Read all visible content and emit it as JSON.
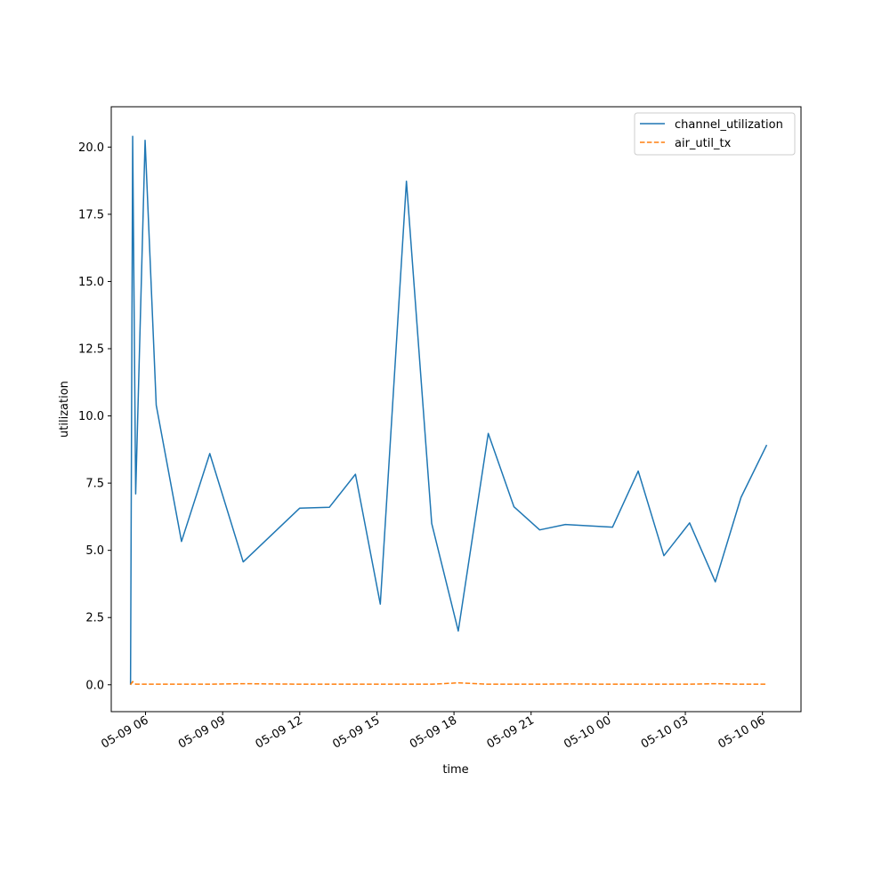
{
  "chart_data": {
    "type": "line",
    "title": "",
    "xlabel": "time",
    "ylabel": "utilization",
    "x_is_datetime": true,
    "xlim": [
      "2024-05-09 04:40",
      "2024-05-10 07:30"
    ],
    "ylim": [
      -1.0,
      21.5
    ],
    "yticks": [
      0.0,
      2.5,
      5.0,
      7.5,
      10.0,
      12.5,
      15.0,
      17.5,
      20.0
    ],
    "ytick_labels": [
      "0.0",
      "2.5",
      "5.0",
      "7.5",
      "10.0",
      "12.5",
      "15.0",
      "17.5",
      "20.0"
    ],
    "xticks": [
      "2024-05-09 06:00",
      "2024-05-09 09:00",
      "2024-05-09 12:00",
      "2024-05-09 15:00",
      "2024-05-09 18:00",
      "2024-05-09 21:00",
      "2024-05-10 00:00",
      "2024-05-10 03:00",
      "2024-05-10 06:00"
    ],
    "xtick_labels": [
      "05-09 06",
      "05-09 09",
      "05-09 12",
      "05-09 15",
      "05-09 18",
      "05-09 21",
      "05-10 00",
      "05-10 03",
      "05-10 06"
    ],
    "grid": false,
    "legend_position": "top-right",
    "series": [
      {
        "name": "channel_utilization",
        "color": "#1f77b4",
        "style": "solid",
        "x": [
          "2024-05-09 05:25",
          "2024-05-09 05:30",
          "2024-05-09 05:37",
          "2024-05-09 05:59",
          "2024-05-09 06:25",
          "2024-05-09 07:24",
          "2024-05-09 08:30",
          "2024-05-09 09:48",
          "2024-05-09 12:00",
          "2024-05-09 13:09",
          "2024-05-09 14:10",
          "2024-05-09 15:08",
          "2024-05-09 16:09",
          "2024-05-09 17:08",
          "2024-05-09 18:10",
          "2024-05-09 19:20",
          "2024-05-09 20:20",
          "2024-05-09 21:20",
          "2024-05-09 22:20",
          "2024-05-10 00:10",
          "2024-05-10 01:10",
          "2024-05-10 02:10",
          "2024-05-10 03:10",
          "2024-05-10 04:10",
          "2024-05-10 05:10",
          "2024-05-10 06:10"
        ],
        "values": [
          0.0,
          20.4,
          7.1,
          20.25,
          10.4,
          5.33,
          8.6,
          4.57,
          6.57,
          6.6,
          7.83,
          3.0,
          18.73,
          6.0,
          2.0,
          9.35,
          6.62,
          5.76,
          5.96,
          5.86,
          7.95,
          4.8,
          6.02,
          3.83,
          6.97,
          8.92
        ]
      },
      {
        "name": "air_util_tx",
        "color": "#ff7f0e",
        "style": "dashed",
        "x": [
          "2024-05-09 05:25",
          "2024-05-09 05:30",
          "2024-05-09 05:37",
          "2024-05-09 05:59",
          "2024-05-09 06:25",
          "2024-05-09 07:24",
          "2024-05-09 08:30",
          "2024-05-09 09:48",
          "2024-05-09 12:00",
          "2024-05-09 13:09",
          "2024-05-09 14:10",
          "2024-05-09 15:08",
          "2024-05-09 16:09",
          "2024-05-09 17:08",
          "2024-05-09 18:10",
          "2024-05-09 19:20",
          "2024-05-09 20:20",
          "2024-05-09 21:20",
          "2024-05-09 22:20",
          "2024-05-10 00:10",
          "2024-05-10 01:10",
          "2024-05-10 02:10",
          "2024-05-10 03:10",
          "2024-05-10 04:10",
          "2024-05-10 05:10",
          "2024-05-10 06:10"
        ],
        "values": [
          0.0,
          0.12,
          0.02,
          0.02,
          0.02,
          0.02,
          0.02,
          0.04,
          0.02,
          0.02,
          0.02,
          0.02,
          0.02,
          0.02,
          0.07,
          0.02,
          0.02,
          0.02,
          0.03,
          0.02,
          0.02,
          0.02,
          0.02,
          0.04,
          0.02,
          0.02
        ]
      }
    ]
  }
}
